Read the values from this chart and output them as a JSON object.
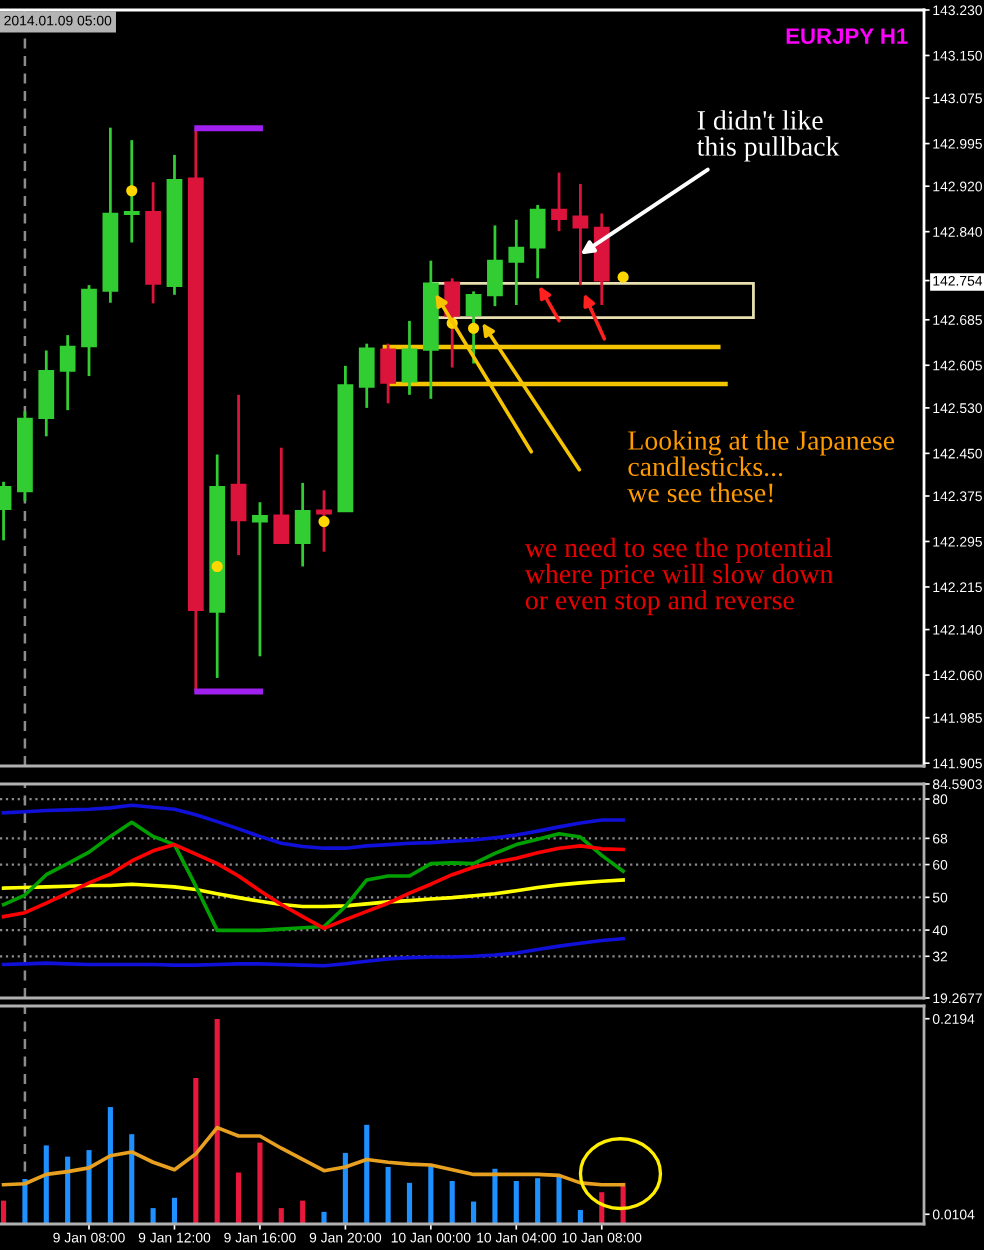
{
  "chart_data": [
    {
      "type": "candlestick",
      "title": "EURJPY H1",
      "x": [
        "2014-01-09T04:00",
        "2014-01-09T05:00",
        "2014-01-09T06:00",
        "2014-01-09T07:00",
        "2014-01-09T08:00",
        "2014-01-09T09:00",
        "2014-01-09T10:00",
        "2014-01-09T11:00",
        "2014-01-09T12:00",
        "2014-01-09T13:00",
        "2014-01-09T14:00",
        "2014-01-09T15:00",
        "2014-01-09T16:00",
        "2014-01-09T17:00",
        "2014-01-09T18:00",
        "2014-01-09T19:00",
        "2014-01-09T20:00",
        "2014-01-09T21:00",
        "2014-01-09T22:00",
        "2014-01-09T23:00",
        "2014-01-10T00:00",
        "2014-01-10T01:00",
        "2014-01-10T02:00",
        "2014-01-10T03:00",
        "2014-01-10T04:00",
        "2014-01-10T05:00",
        "2014-01-10T06:00",
        "2014-01-10T07:00",
        "2014-01-10T08:00"
      ],
      "ohlc": [
        [
          142.352,
          142.4,
          142.297,
          142.391
        ],
        [
          142.383,
          142.524,
          142.366,
          142.511
        ],
        [
          142.512,
          142.631,
          142.48,
          142.595
        ],
        [
          142.595,
          142.658,
          142.526,
          142.638
        ],
        [
          142.638,
          142.746,
          142.586,
          142.738
        ],
        [
          142.736,
          143.023,
          142.715,
          142.872
        ],
        [
          142.871,
          143.001,
          142.821,
          142.875
        ],
        [
          142.875,
          142.927,
          142.714,
          142.748
        ],
        [
          142.744,
          142.975,
          142.729,
          142.931
        ],
        [
          142.934,
          143.021,
          142.031,
          142.174
        ],
        [
          142.171,
          142.448,
          142.055,
          142.391
        ],
        [
          142.395,
          142.553,
          142.271,
          142.332
        ],
        [
          142.33,
          142.364,
          142.093,
          142.34
        ],
        [
          142.341,
          142.46,
          142.292,
          142.292
        ],
        [
          142.292,
          142.398,
          142.251,
          142.349
        ],
        [
          142.35,
          142.385,
          142.277,
          142.344
        ],
        [
          142.348,
          142.604,
          142.348,
          142.57
        ],
        [
          142.567,
          142.643,
          142.53,
          142.635
        ],
        [
          142.633,
          142.643,
          142.538,
          142.574
        ],
        [
          142.576,
          142.683,
          142.553,
          142.633
        ],
        [
          142.632,
          142.789,
          142.546,
          142.749
        ],
        [
          142.751,
          142.758,
          142.601,
          142.692
        ],
        [
          142.693,
          142.735,
          142.608,
          142.729
        ],
        [
          142.728,
          142.851,
          142.709,
          142.789
        ],
        [
          142.787,
          142.861,
          142.711,
          142.812
        ],
        [
          142.812,
          142.887,
          142.758,
          142.879
        ],
        [
          142.879,
          142.944,
          142.841,
          142.862
        ],
        [
          142.867,
          142.924,
          142.746,
          142.847
        ],
        [
          142.847,
          142.872,
          142.711,
          142.754
        ]
      ],
      "colors": [
        "#32cd32",
        "#32cd32",
        "#32cd32",
        "#32cd32",
        "#32cd32",
        "#32cd32",
        "#32cd32",
        "#dc143c",
        "#32cd32",
        "#dc143c",
        "#32cd32",
        "#dc143c",
        "#32cd32",
        "#dc143c",
        "#32cd32",
        "#dc143c",
        "#32cd32",
        "#32cd32",
        "#dc143c",
        "#32cd32",
        "#32cd32",
        "#dc143c",
        "#32cd32",
        "#32cd32",
        "#32cd32",
        "#32cd32",
        "#dc143c",
        "#dc143c",
        "#dc143c"
      ],
      "series": [
        {
          "type": "scatter",
          "marker": "circle",
          "color": "#ffd700",
          "x": [
            "2014-01-09T10:00",
            "2014-01-09T14:00",
            "2014-01-09T19:00",
            "2014-01-10T01:00",
            "2014-01-10T02:00",
            "2014-01-10T09:00"
          ],
          "values": [
            142.912,
            142.251,
            142.33,
            142.679,
            142.67,
            142.76
          ]
        }
      ],
      "xlim": [
        "2014-01-09T03:50",
        "2014-01-10T23:05"
      ],
      "ylim": [
        141.9,
        143.23
      ],
      "yticks": [
        {
          "value": 143.23,
          "label": "143.230"
        },
        {
          "value": 143.15,
          "label": "143.150"
        },
        {
          "value": 143.075,
          "label": "143.075"
        },
        {
          "value": 142.995,
          "label": "142.995"
        },
        {
          "value": 142.92,
          "label": "142.920"
        },
        {
          "value": 142.84,
          "label": "142.840"
        },
        {
          "value": 142.754,
          "label": "142.754"
        },
        {
          "value": 142.685,
          "label": "142.685"
        },
        {
          "value": 142.605,
          "label": "142.605"
        },
        {
          "value": 142.53,
          "label": "142.530"
        },
        {
          "value": 142.45,
          "label": "142.450"
        },
        {
          "value": 142.375,
          "label": "142.375"
        },
        {
          "value": 142.295,
          "label": "142.295"
        },
        {
          "value": 142.215,
          "label": "142.215"
        },
        {
          "value": 142.14,
          "label": "142.140"
        },
        {
          "value": 142.06,
          "label": "142.060"
        },
        {
          "value": 141.985,
          "label": "141.985"
        },
        {
          "value": 141.905,
          "label": "141.905"
        }
      ],
      "tick_labels": "y",
      "ref_lines": [
        {
          "axis": "y",
          "value": 142.637,
          "color": "#f5c400"
        },
        {
          "axis": "y",
          "value": 142.572,
          "color": "#f5c400"
        },
        {
          "axis": "x",
          "value": "2014-01-09T05:00",
          "label": "2014.01.09 05:00",
          "color": "#8c8c8c",
          "line_style": "dashed"
        }
      ],
      "annotations": [
        {
          "text": "I didn't like\nthis pullback",
          "x": "2014-01-10T07:00",
          "y": 142.8
        },
        "Looking at the Japanese\ncandlesticks...\nwe see these!",
        "we need to see the potential\nwhere price will slow down\nor even stop and reverse"
      ]
    },
    {
      "type": "line",
      "x": [
        "2014-01-09T04:00",
        "2014-01-09T05:00",
        "2014-01-09T06:00",
        "2014-01-09T07:00",
        "2014-01-09T08:00",
        "2014-01-09T09:00",
        "2014-01-09T10:00",
        "2014-01-09T11:00",
        "2014-01-09T12:00",
        "2014-01-09T13:00",
        "2014-01-09T14:00",
        "2014-01-09T15:00",
        "2014-01-09T16:00",
        "2014-01-09T17:00",
        "2014-01-09T18:00",
        "2014-01-09T19:00",
        "2014-01-09T20:00",
        "2014-01-09T21:00",
        "2014-01-09T22:00",
        "2014-01-09T23:00",
        "2014-01-10T00:00",
        "2014-01-10T01:00",
        "2014-01-10T02:00",
        "2014-01-10T03:00",
        "2014-01-10T04:00",
        "2014-01-10T05:00",
        "2014-01-10T06:00",
        "2014-01-10T07:00",
        "2014-01-10T08:00",
        "2014-01-10T09:00"
      ],
      "series": [
        {
          "color": "#1010d8",
          "values": [
            75.8,
            76.1,
            76.5,
            76.7,
            76.9,
            77.3,
            78.1,
            77.5,
            76.9,
            75.2,
            73.1,
            70.9,
            68.6,
            66.5,
            65.5,
            65.0,
            65.0,
            65.7,
            66.1,
            66.5,
            66.7,
            67.1,
            67.5,
            68.2,
            69.0,
            70.2,
            71.5,
            72.7,
            73.6,
            73.6
          ]
        },
        {
          "color": "#1010d8",
          "values": [
            29.5,
            29.7,
            29.9,
            29.7,
            29.5,
            29.5,
            29.5,
            29.5,
            29.3,
            29.3,
            29.5,
            29.7,
            29.7,
            29.5,
            29.3,
            29.1,
            29.7,
            30.5,
            31.2,
            31.6,
            31.8,
            31.8,
            32.0,
            32.4,
            33.0,
            34.1,
            35.1,
            36.0,
            36.8,
            37.4
          ]
        },
        {
          "color": "#ffff00",
          "values": [
            52.8,
            53.0,
            53.2,
            53.4,
            53.6,
            53.6,
            54.0,
            53.6,
            53.2,
            52.4,
            51.1,
            49.9,
            48.8,
            47.8,
            47.2,
            47.2,
            47.4,
            48.0,
            48.6,
            49.0,
            49.5,
            49.9,
            50.5,
            51.1,
            52.0,
            53.0,
            53.8,
            54.4,
            54.9,
            55.3
          ]
        },
        {
          "color": "#00a000",
          "values": [
            47.8,
            50.7,
            56.9,
            60.3,
            63.8,
            68.6,
            72.9,
            68.6,
            66.1,
            53.4,
            39.9,
            39.9,
            39.9,
            40.3,
            40.7,
            41.1,
            47.2,
            55.3,
            56.5,
            56.5,
            60.3,
            60.5,
            60.3,
            63.4,
            66.1,
            67.7,
            69.4,
            68.4,
            62.8,
            58.0
          ]
        },
        {
          "color": "#ff0000",
          "values": [
            44.1,
            45.3,
            48.2,
            51.3,
            54.4,
            57.1,
            61.1,
            64.2,
            66.1,
            63.2,
            60.3,
            56.5,
            52.0,
            47.8,
            44.1,
            40.5,
            43.2,
            45.7,
            48.2,
            51.3,
            54.0,
            56.9,
            59.2,
            60.7,
            61.9,
            63.6,
            65.0,
            65.7,
            64.8,
            64.6
          ]
        }
      ],
      "xlim": [
        "2014-01-09T03:50",
        "2014-01-10T23:05"
      ],
      "ylim": [
        19.2677,
        84.5903
      ],
      "yticks": [
        84.5903,
        80,
        68,
        60,
        50,
        40,
        32,
        19.2677
      ],
      "grid": "y",
      "line_style": "solid",
      "tick_labels": "y",
      "ref_lines": [
        {
          "axis": "x",
          "value": "2014-01-09T05:00",
          "color": "#8c8c8c",
          "line_style": "dashed"
        }
      ]
    },
    {
      "type": "bar",
      "x": [
        "2014-01-09T04:00",
        "2014-01-09T05:00",
        "2014-01-09T06:00",
        "2014-01-09T07:00",
        "2014-01-09T08:00",
        "2014-01-09T09:00",
        "2014-01-09T10:00",
        "2014-01-09T11:00",
        "2014-01-09T12:00",
        "2014-01-09T13:00",
        "2014-01-09T14:00",
        "2014-01-09T15:00",
        "2014-01-09T16:00",
        "2014-01-09T17:00",
        "2014-01-09T18:00",
        "2014-01-09T19:00",
        "2014-01-09T20:00",
        "2014-01-09T21:00",
        "2014-01-09T22:00",
        "2014-01-09T23:00",
        "2014-01-10T00:00",
        "2014-01-10T01:00",
        "2014-01-10T02:00",
        "2014-01-10T03:00",
        "2014-01-10T04:00",
        "2014-01-10T05:00",
        "2014-01-10T06:00",
        "2014-01-10T07:00",
        "2014-01-10T08:00",
        "2014-01-10T09:00"
      ],
      "series": [
        {
          "values": [
            0.025,
            0.048,
            0.084,
            0.072,
            0.079,
            0.125,
            0.096,
            0.017,
            0.028,
            0.156,
            0.219,
            0.055,
            0.087,
            0.017,
            0.025,
            0.013,
            0.076,
            0.106,
            0.061,
            0.044,
            0.062,
            0.046,
            0.024,
            0.059,
            0.046,
            0.049,
            0.053,
            0.015,
            0.034,
            0.044
          ],
          "colors": [
            "#e8173c",
            "#1e90ff",
            "#1e90ff",
            "#1e90ff",
            "#1e90ff",
            "#1e90ff",
            "#1e90ff",
            "#1e90ff",
            "#1e90ff",
            "#e8173c",
            "#e8173c",
            "#e8173c",
            "#e8173c",
            "#e8173c",
            "#e8173c",
            "#1e90ff",
            "#1e90ff",
            "#1e90ff",
            "#1e90ff",
            "#1e90ff",
            "#1e90ff",
            "#1e90ff",
            "#1e90ff",
            "#1e90ff",
            "#1e90ff",
            "#1e90ff",
            "#1e90ff",
            "#1e90ff",
            "#e8173c",
            "#e8173c"
          ]
        },
        {
          "type": "line",
          "color": "#e8a020",
          "values": [
            0.042,
            0.043,
            0.053,
            0.056,
            0.06,
            0.073,
            0.077,
            0.066,
            0.058,
            0.075,
            0.103,
            0.094,
            0.094,
            0.081,
            0.069,
            0.057,
            0.061,
            0.069,
            0.066,
            0.064,
            0.063,
            0.058,
            0.053,
            0.053,
            0.053,
            0.053,
            0.052,
            0.044,
            0.042,
            0.042
          ]
        }
      ],
      "xlim": [
        "2014-01-09T03:50",
        "2014-01-10T23:05"
      ],
      "ylim": [
        0,
        0.233
      ],
      "xticks": [
        {
          "value": "2014-01-09T08:00",
          "label": "9 Jan 08:00"
        },
        {
          "value": "2014-01-09T12:00",
          "label": "9 Jan 12:00"
        },
        {
          "value": "2014-01-09T16:00",
          "label": "9 Jan 16:00"
        },
        {
          "value": "2014-01-09T20:00",
          "label": "9 Jan 20:00"
        },
        {
          "value": "2014-01-10T00:00",
          "label": "10 Jan 00:00"
        },
        {
          "value": "2014-01-10T04:00",
          "label": "10 Jan 04:00"
        },
        {
          "value": "2014-01-10T08:00",
          "label": "10 Jan 08:00"
        }
      ],
      "yticks": [
        0.2194,
        0.0104
      ],
      "ref_lines": [
        {
          "axis": "x",
          "value": "2014-01-09T05:00",
          "color": "#8c8c8c",
          "line_style": "dashed"
        }
      ]
    }
  ]
}
